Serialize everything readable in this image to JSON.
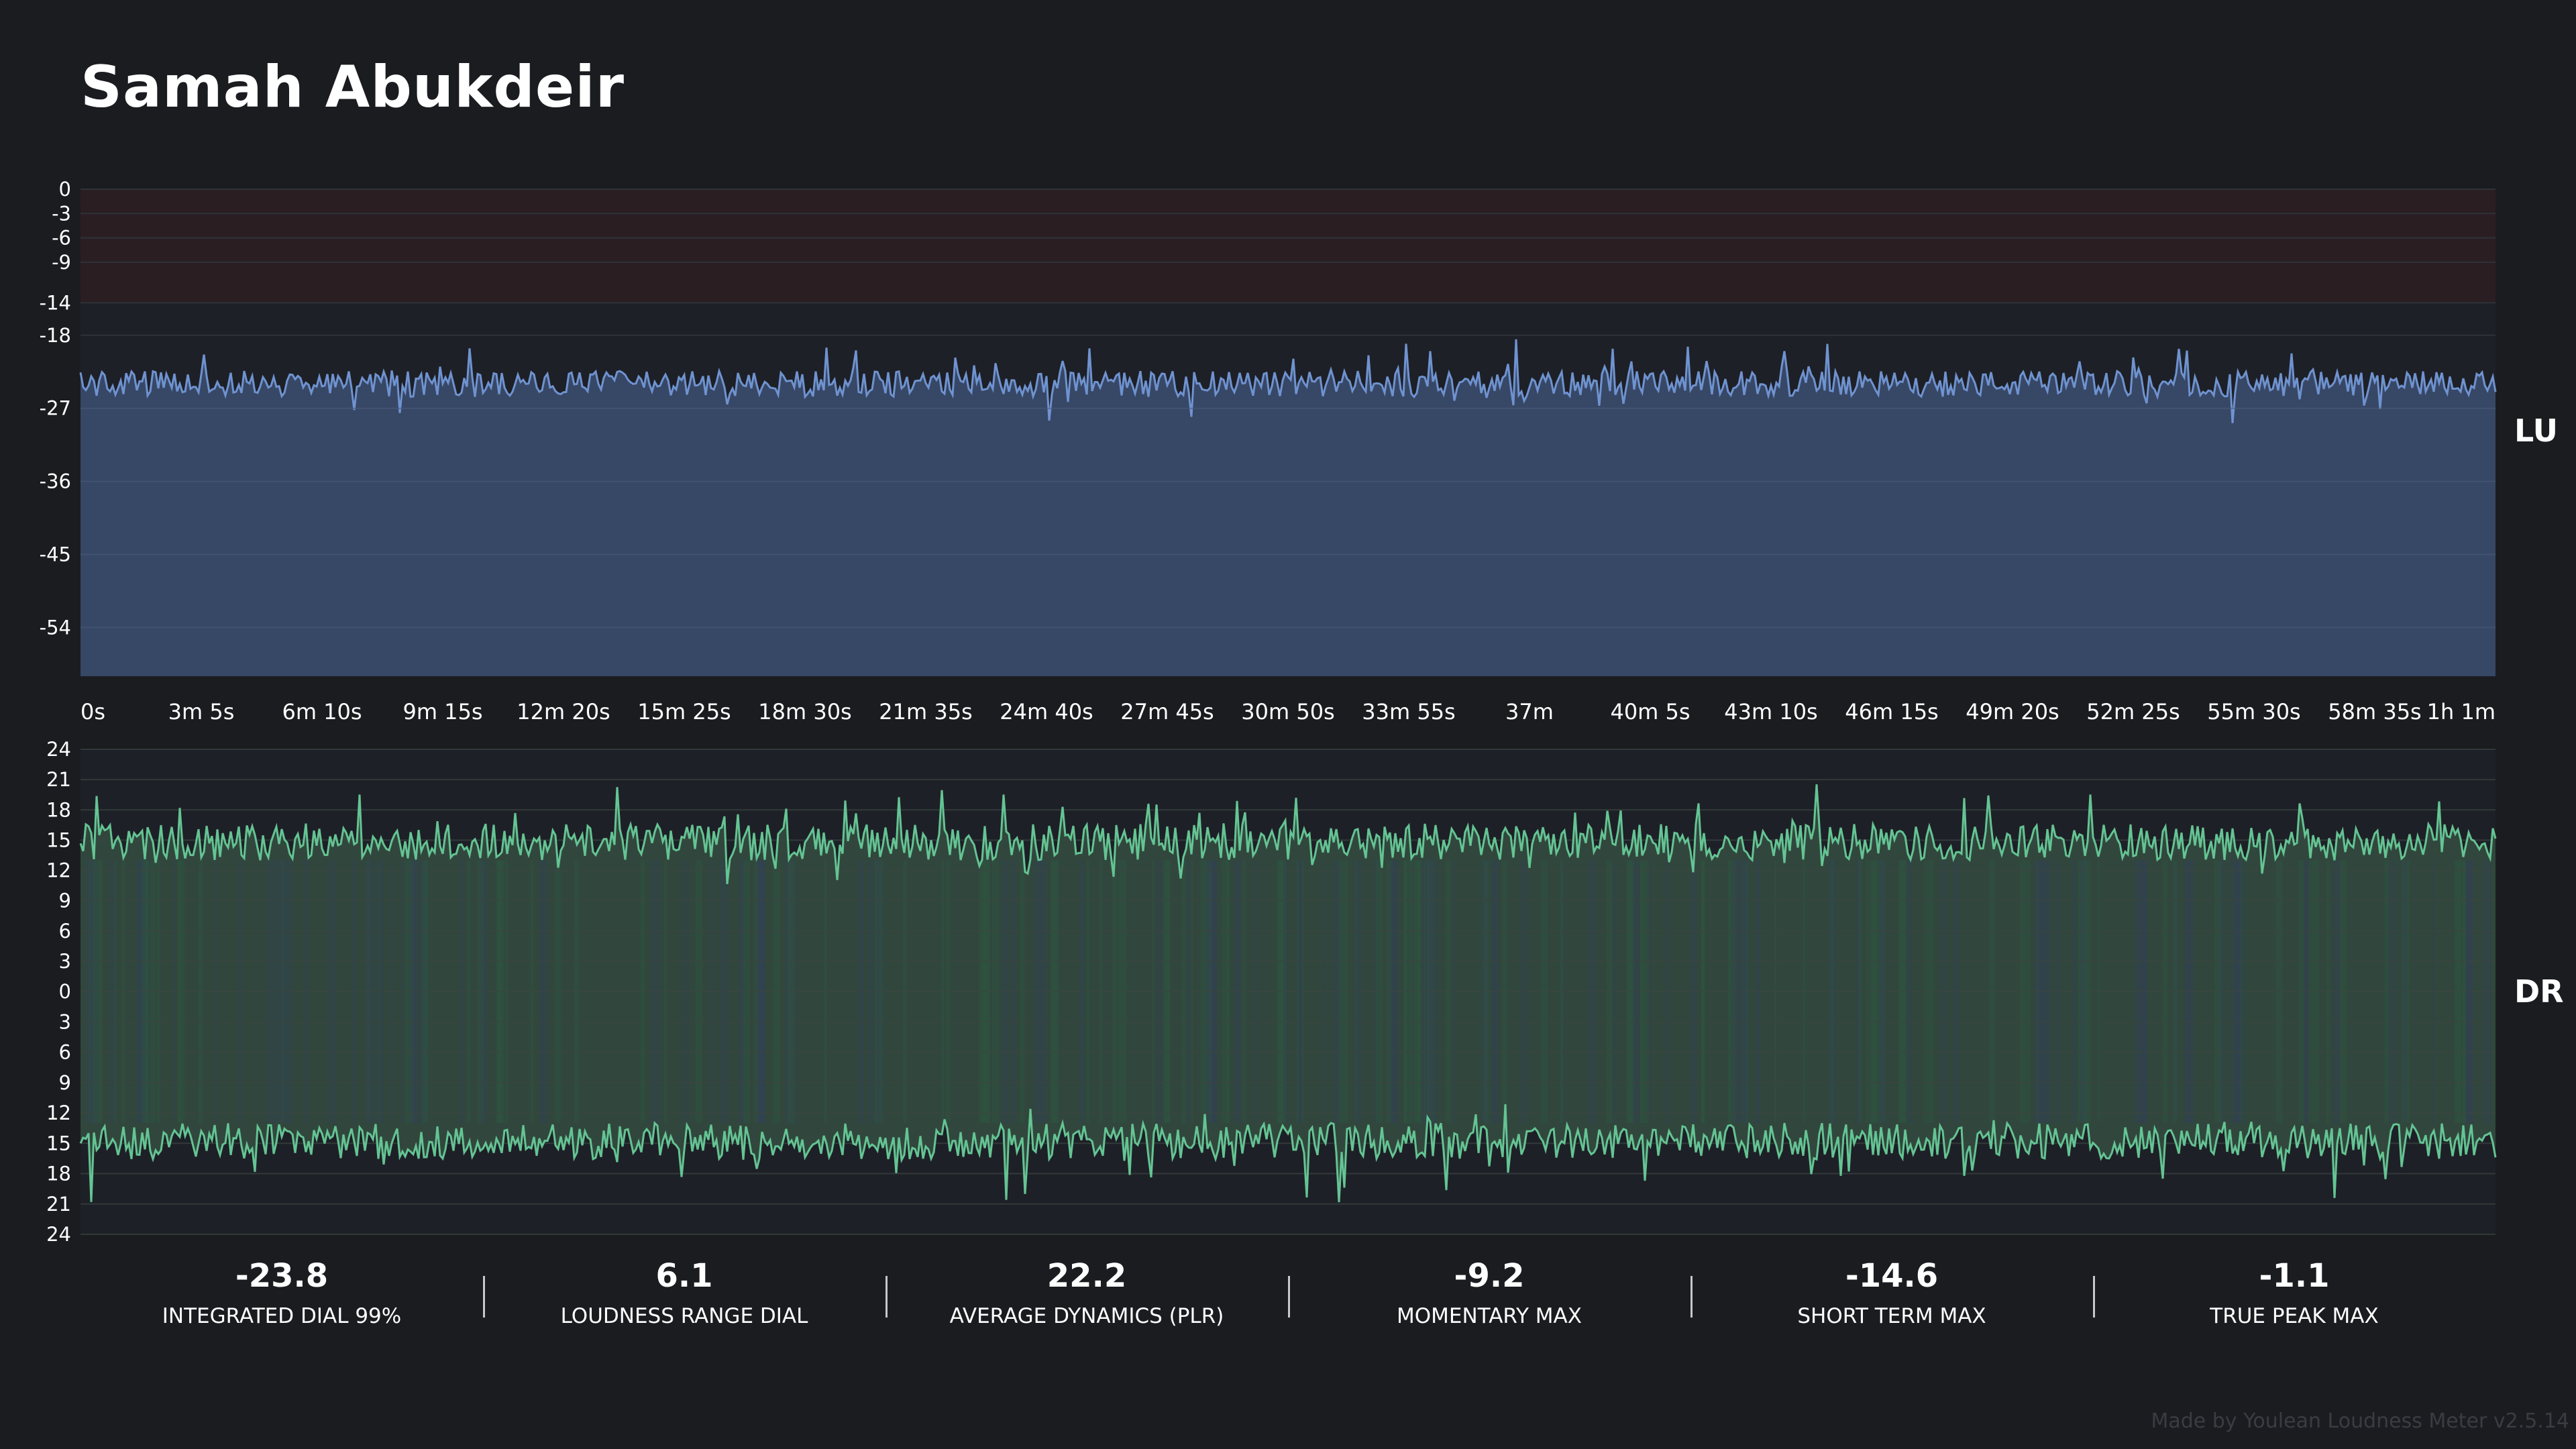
{
  "title": "Samah Abukdeir",
  "loudness_graph": {
    "side_label": "LU",
    "y_ticks": [
      "0",
      "-3",
      "-6",
      "-9",
      "-14",
      "-18",
      "-27",
      "-36",
      "-45",
      "-54"
    ],
    "y_tick_values": [
      0,
      -3,
      -6,
      -9,
      -14,
      -18,
      -27,
      -36,
      -45,
      -54
    ],
    "highlight_tick": "-14",
    "y_range": [
      -60,
      0
    ]
  },
  "time_axis": {
    "labels": [
      "0s",
      "3m 5s",
      "6m 10s",
      "9m 15s",
      "12m 20s",
      "15m 25s",
      "18m 30s",
      "21m 35s",
      "24m 40s",
      "27m 45s",
      "30m 50s",
      "33m 55s",
      "37m",
      "40m 5s",
      "43m 10s",
      "46m 15s",
      "49m 20s",
      "52m 25s",
      "55m 30s",
      "58m 35s",
      "1h 1m"
    ],
    "seconds": [
      0,
      185,
      370,
      555,
      740,
      925,
      1110,
      1295,
      1480,
      1665,
      1850,
      2035,
      2220,
      2405,
      2590,
      2775,
      2960,
      3145,
      3330,
      3515,
      3660
    ],
    "duration_seconds": 3700
  },
  "dynamics_graph": {
    "side_label": "DR",
    "y_ticks_top": [
      "24",
      "21",
      "18",
      "15",
      "12",
      "9",
      "6",
      "3",
      "0"
    ],
    "y_ticks_bottom": [
      "3",
      "6",
      "9",
      "12",
      "15",
      "18",
      "21",
      "24"
    ],
    "y_range": [
      0,
      24
    ]
  },
  "stats": [
    {
      "value": "-23.8",
      "label": "INTEGRATED DIAL 99%"
    },
    {
      "value": "6.1",
      "label": "LOUDNESS RANGE DIAL"
    },
    {
      "value": "22.2",
      "label": "AVERAGE DYNAMICS (PLR)"
    },
    {
      "value": "-9.2",
      "label": "MOMENTARY MAX"
    },
    {
      "value": "-14.6",
      "label": "SHORT TERM MAX"
    },
    {
      "value": "-1.1",
      "label": "TRUE PEAK MAX"
    }
  ],
  "footer": "Made by Youlean Loudness Meter v2.5.14",
  "colors": {
    "background": "#1b1c20",
    "loudness_fill": "#394b6b",
    "loudness_line": "#6f93d0",
    "danger_zone": "#2a1e22",
    "dynamics_fill": "#334a3e",
    "dynamics_line": "#64c493",
    "highlight_tick": "#f0b040"
  }
}
